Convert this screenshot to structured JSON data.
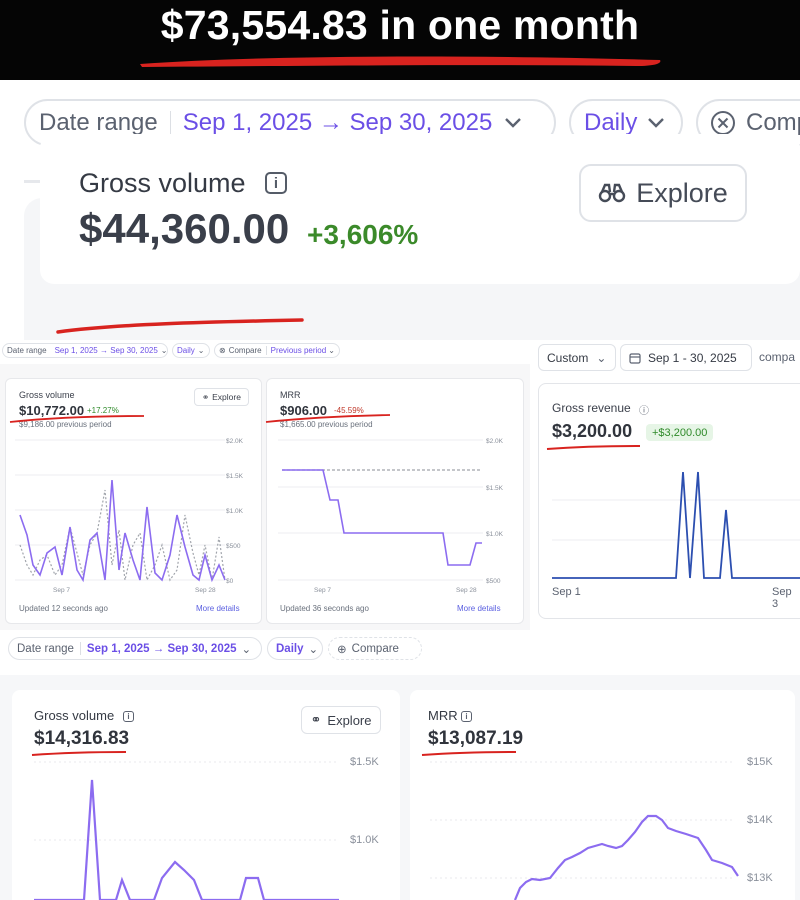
{
  "headline": "$73,554.83 in one month",
  "panel_a": {
    "date_range_label": "Date range",
    "date_range_value": "Sep 1, 2025 → Sep 30, 2025",
    "interval": "Daily",
    "compare_label": "Comp",
    "metric_title": "Gross volume",
    "metric_value": "$44,360.00",
    "metric_change": "+3,606%",
    "explore_label": "Explore"
  },
  "panel_b": {
    "toolbar": {
      "date_range_label": "Date range",
      "date_range_value": "Sep 1, 2025 → Sep 30, 2025",
      "interval": "Daily",
      "compare_label": "Compare",
      "compare_value": "Previous period"
    },
    "gross_volume": {
      "title": "Gross volume",
      "value": "$10,772.00",
      "change": "+17.27%",
      "previous": "$9,186.00 previous period",
      "explore_label": "Explore",
      "y_ticks": [
        "$2.0K",
        "$1.5K",
        "$1.0K",
        "$500",
        "$0"
      ],
      "x_ticks": [
        "Sep 7",
        "Sep 28"
      ],
      "updated": "Updated 12 seconds ago",
      "more": "More details"
    },
    "mrr": {
      "title": "MRR",
      "value": "$906.00",
      "change": "-45.59%",
      "previous": "$1,665.00 previous period",
      "y_ticks": [
        "$2.0K",
        "$1.5K",
        "$1.0K",
        "$500"
      ],
      "x_ticks": [
        "Sep 7",
        "Sep 28"
      ],
      "updated": "Updated 36 seconds ago",
      "more": "More details"
    }
  },
  "panel_c": {
    "custom_label": "Custom",
    "date_value": "Sep 1 - 30, 2025",
    "compare_label": "compa",
    "title": "Gross revenue",
    "value": "$3,200.00",
    "badge": "+$3,200.00",
    "x_ticks": [
      "Sep 1",
      "Sep 3"
    ]
  },
  "panel_d": {
    "toolbar": {
      "date_range_label": "Date range",
      "date_range_value": "Sep 1, 2025 → Sep 30, 2025",
      "interval": "Daily",
      "compare_label": "Compare"
    },
    "gross_volume": {
      "title": "Gross volume",
      "value": "$14,316.83",
      "explore_label": "Explore",
      "y_ticks": [
        "$1.5K",
        "$1.0K"
      ]
    },
    "mrr": {
      "title": "MRR",
      "value": "$13,087.19",
      "y_ticks": [
        "$15K",
        "$14K",
        "$13K"
      ]
    }
  },
  "colors": {
    "accent": "#6b4fe6",
    "line_purple": "#8c6cf0",
    "line_blue": "#2c4fb0",
    "underline_red": "#d8231f",
    "positive": "#2f8a2a",
    "negative": "#c0392b"
  }
}
